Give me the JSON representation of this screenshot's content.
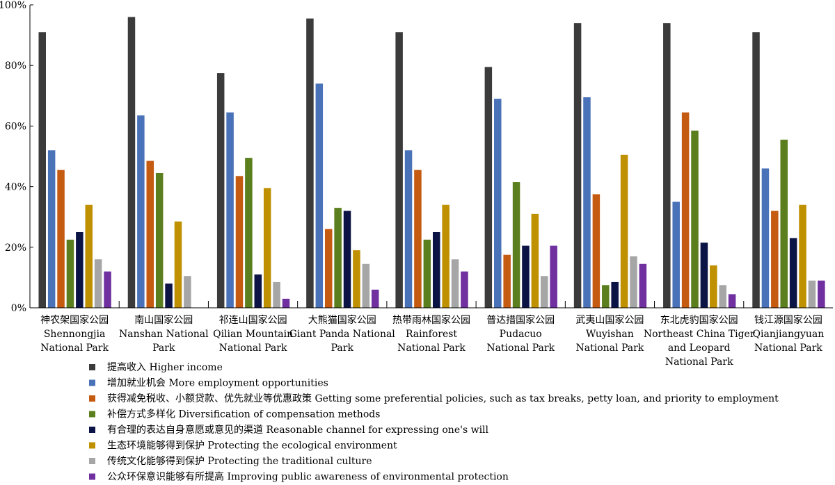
{
  "chart_data": {
    "type": "bar",
    "categories": [
      [
        "神农架国家公园",
        "Shennongjia",
        "National Park"
      ],
      [
        "南山国家公园",
        "Nanshan National",
        "Park"
      ],
      [
        "祁连山国家公园",
        "Qilian Mountain",
        "National Park"
      ],
      [
        "大熊猫国家公园",
        "Giant Panda National",
        "Park"
      ],
      [
        "热带雨林国家公园",
        "Rainforest",
        "National Park"
      ],
      [
        "普达措国家公园",
        "Pudacuo",
        "National Park"
      ],
      [
        "武夷山国家公园",
        "Wuyishan",
        "National Park"
      ],
      [
        "东北虎豹国家公园",
        "Northeast China Tiger",
        "and Leopard",
        "National Park"
      ],
      [
        "钱江源国家公园",
        "Qianjiangyuan",
        "National Park"
      ]
    ],
    "series": [
      {
        "name": "提高收入  Higher income",
        "color": "#3b3b3b",
        "values": [
          91,
          96,
          77.5,
          95.5,
          91,
          79.5,
          94,
          94,
          91
        ]
      },
      {
        "name": "增加就业机会  More employment opportunities",
        "color": "#4a72b8",
        "values": [
          52,
          63.5,
          64.5,
          74,
          52,
          69,
          69.5,
          35,
          46
        ]
      },
      {
        "name": "获得减免税收、小额贷款、优先就业等优惠政策  Getting some preferential policies, such as tax breaks, petty loan, and priority to employment",
        "color": "#c55a11",
        "values": [
          45.5,
          48.5,
          43.5,
          26,
          45.5,
          17.5,
          37.5,
          64.5,
          32
        ]
      },
      {
        "name": "补偿方式多样化  Diversification of compensation methods",
        "color": "#5b7f1f",
        "values": [
          22.5,
          44.5,
          49.5,
          33,
          22.5,
          41.5,
          7.5,
          58.5,
          55.5
        ]
      },
      {
        "name": "有合理的表达自身意愿或意见的渠道  Reasonable channel for expressing one's will",
        "color": "#0c1445",
        "values": [
          25,
          8,
          11,
          32,
          25,
          20.5,
          8.5,
          21.5,
          23
        ]
      },
      {
        "name": "生态环境能够得到保护  Protecting the ecological environment",
        "color": "#bf9000",
        "values": [
          34,
          28.5,
          39.5,
          19,
          34,
          31,
          50.5,
          14,
          34
        ]
      },
      {
        "name": "传统文化能够得到保护  Protecting the traditional culture",
        "color": "#a6a6a6",
        "values": [
          16,
          10.5,
          8.5,
          14.5,
          16,
          10.5,
          17,
          7.5,
          9
        ]
      },
      {
        "name": "公众环保意识能够有所提高  Improving public awareness of environmental protection",
        "color": "#7030a0",
        "values": [
          12,
          0,
          3,
          6,
          12,
          20.5,
          14.5,
          4.5,
          9
        ]
      }
    ],
    "ylim": [
      0,
      100
    ],
    "yticks": [
      0,
      20,
      40,
      60,
      80,
      100
    ],
    "ytick_labels": [
      "0%",
      "20%",
      "40%",
      "60%",
      "80%",
      "100%"
    ],
    "grid": false,
    "legend_position": "bottom"
  }
}
